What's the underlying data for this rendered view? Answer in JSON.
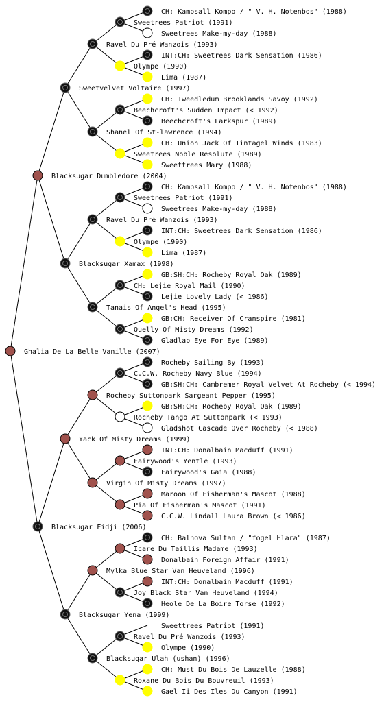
{
  "generations": [
    [
      {
        "label": "Ghalia De La Belle Vanille (2007)",
        "color": "#a0524d"
      }
    ],
    [
      {
        "label": "Blacksugar Dumbledore (2004)",
        "color": "#a0524d"
      },
      {
        "label": "Blacksugar Fidji (2006)",
        "color": "#111111"
      }
    ],
    [
      {
        "label": "Sweetvelvet Voltaire (1997)",
        "color": "#111111"
      },
      {
        "label": "Blacksugar Xamax (1998)",
        "color": "#111111"
      },
      {
        "label": "Yack Of Misty Dreams (1999)",
        "color": "#a0524d"
      },
      {
        "label": "Blacksugar Yena (1999)",
        "color": "#111111"
      }
    ],
    [
      {
        "label": "Ravel Du Pré Wanzois (1993)",
        "color": "#111111"
      },
      {
        "label": "Shanel Of St-lawrence (1994)",
        "color": "#111111"
      },
      {
        "label": "Ravel Du Pré Wanzois (1993)",
        "color": "#111111"
      },
      {
        "label": "Tanais Of Angel's Head (1995)",
        "color": "#111111"
      },
      {
        "label": "Rocheby Suttonpark Sargeant Pepper (1995)",
        "color": "#a0524d"
      },
      {
        "label": "Virgin Of Misty Dreams (1997)",
        "color": "#a0524d"
      },
      {
        "label": "Mylka Blue Star Van Heuveland (1996)",
        "color": "#a0524d"
      },
      {
        "label": "Blacksugar Ulah (ushan) (1996)",
        "color": "#111111"
      }
    ],
    [
      {
        "label": "Sweetrees Patriot (1991)",
        "color": "#111111"
      },
      {
        "label": "Olympe (1990)",
        "color": "#ffff00"
      },
      {
        "label": "Beechcroft's Sudden Impact (< 1992)",
        "color": "#111111"
      },
      {
        "label": "Sweetrees Noble Resolute (1989)",
        "color": "#ffff00"
      },
      {
        "label": "Sweetrees Patriot (1991)",
        "color": "#111111"
      },
      {
        "label": "Olympe (1990)",
        "color": "#ffff00"
      },
      {
        "label": "CH: Lejie Royal Mail (1990)",
        "color": "#111111"
      },
      {
        "label": "Quelly Of Misty Dreams (1992)",
        "color": "#111111"
      },
      {
        "label": "C.C.W. Rocheby Navy Blue (1994)",
        "color": "#111111"
      },
      {
        "label": "Rocheby Tango At Suttonpark (< 1993)",
        "color": "#ffffff"
      },
      {
        "label": "Fairywood's Yentle (1993)",
        "color": "#a0524d"
      },
      {
        "label": "Pia Of Fisherman's Mascot (1991)",
        "color": "#a0524d"
      },
      {
        "label": "Icare Du Taillis Madame (1993)",
        "color": "#a0524d"
      },
      {
        "label": "Joy Black Star Van Heuveland (1994)",
        "color": "#111111"
      },
      {
        "label": "Ravel Du Pré Wanzois (1993)",
        "color": "#111111"
      },
      {
        "label": "Roxane Du Bois Du Bouvreuil (1993)",
        "color": "#ffff00"
      }
    ],
    [
      {
        "label": "CH: Kampsall Kompo / \" V. H. Notenbos\" (1988)",
        "color": "#111111"
      },
      {
        "label": "Sweetrees Make-my-day (1988)",
        "color": "#ffffff"
      },
      {
        "label": "INT:CH: Sweetrees Dark Sensation (1986)",
        "color": "#111111"
      },
      {
        "label": "Lima (1987)",
        "color": "#ffff00"
      },
      {
        "label": "CH: Tweedledum Brooklands Savoy (1992)",
        "color": "#ffff00"
      },
      {
        "label": "Beechcroft's Larkspur (1989)",
        "color": "#111111"
      },
      {
        "label": "CH: Union Jack Of Tintagel Winds (1983)",
        "color": "#ffff00"
      },
      {
        "label": "Sweettrees Mary (1988)",
        "color": "#ffff00"
      },
      {
        "label": "CH: Kampsall Kompo / \" V. H. Notenbos\" (1988)",
        "color": "#111111"
      },
      {
        "label": "Sweetrees Make-my-day (1988)",
        "color": "#ffffff"
      },
      {
        "label": "INT:CH: Sweetrees Dark Sensation (1986)",
        "color": "#111111"
      },
      {
        "label": "Lima (1987)",
        "color": "#ffff00"
      },
      {
        "label": "GB:SH:CH: Rocheby Royal Oak (1989)",
        "color": "#ffff00"
      },
      {
        "label": "Lejie Lovely Lady (< 1986)",
        "color": "#111111"
      },
      {
        "label": "GB:CH: Receiver Of Cranspire (1981)",
        "color": "#ffff00"
      },
      {
        "label": "Gladlab Eye For Eye (1989)",
        "color": "#111111"
      },
      {
        "label": "Rocheby Sailing By (1993)",
        "color": "#111111"
      },
      {
        "label": "GB:SH:CH: Cambremer Royal Velvet At Rocheby (< 1994)",
        "color": "#111111"
      },
      {
        "label": "GB:SH:CH: Rocheby Royal Oak (1989)",
        "color": "#ffff00"
      },
      {
        "label": "Gladshot Cascade Over Rocheby (< 1988)",
        "color": "#ffffff"
      },
      {
        "label": "INT:CH:  Donalbain Macduff (1991)",
        "color": "#a0524d"
      },
      {
        "label": "Fairywood's Gaia (1988)",
        "color": "#111111"
      },
      {
        "label": "Maroon Of Fisherman's Mascot (1988)",
        "color": "#a0524d"
      },
      {
        "label": "C.C.W. Lindall Laura Brown (< 1986)",
        "color": "#a0524d"
      },
      {
        "label": "CH: Balnova Sultan / \"fogel Hlara\" (1987)",
        "color": "#111111"
      },
      {
        "label": "Donalbain Foreign Affair (1991)",
        "color": "#a0524d"
      },
      {
        "label": "INT:CH:  Donalbain Macduff (1991)",
        "color": "#a0524d"
      },
      {
        "label": "Heole De La Boire Torse (1992)",
        "color": "#111111"
      },
      {
        "label": "Sweettrees Patriot (1991)",
        "color": null
      },
      {
        "label": "Olympe (1990)",
        "color": "#ffff00"
      },
      {
        "label": "CH: Must Du Bois De Lauzelle (1988)",
        "color": "#ffff00"
      },
      {
        "label": "Gael Ii Des Iles Du Canyon (1991)",
        "color": "#ffff00"
      }
    ]
  ]
}
